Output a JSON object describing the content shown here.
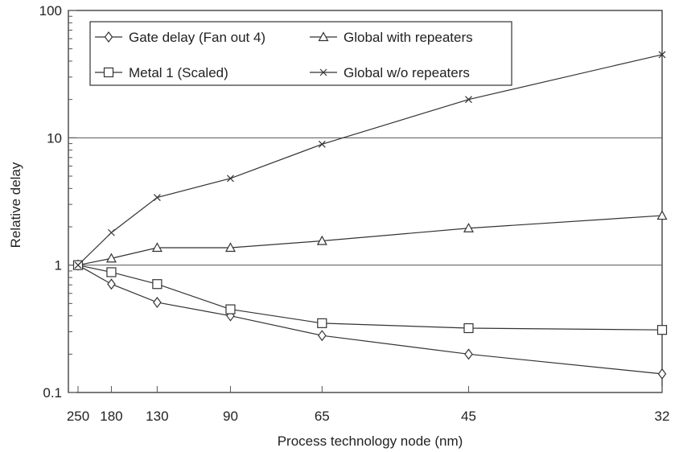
{
  "chart_data": {
    "type": "line",
    "xlabel": "Process technology node (nm)",
    "ylabel": "Relative delay",
    "categories": [
      "250",
      "180",
      "130",
      "90",
      "65",
      "45",
      "32"
    ],
    "y_scale": "log",
    "ylim": [
      0.1,
      100
    ],
    "y_ticks": [
      "0.1",
      "1",
      "10",
      "100"
    ],
    "grid": "horizontal at 1 and 10",
    "legend_position": "top-left",
    "series": [
      {
        "name": "Gate delay (Fan out 4)",
        "marker": "diamond",
        "values": [
          1.0,
          0.71,
          0.51,
          0.4,
          0.28,
          0.2,
          0.14
        ]
      },
      {
        "name": "Global with repeaters",
        "marker": "triangle",
        "values": [
          1.0,
          1.13,
          1.37,
          1.37,
          1.55,
          1.95,
          2.45
        ]
      },
      {
        "name": "Metal 1 (Scaled)",
        "marker": "square",
        "values": [
          1.0,
          0.88,
          0.71,
          0.45,
          0.35,
          0.32,
          0.31
        ]
      },
      {
        "name": "Global w/o repeaters",
        "marker": "cross",
        "values": [
          1.0,
          1.8,
          3.4,
          4.8,
          8.9,
          20.0,
          45.0
        ]
      }
    ]
  }
}
